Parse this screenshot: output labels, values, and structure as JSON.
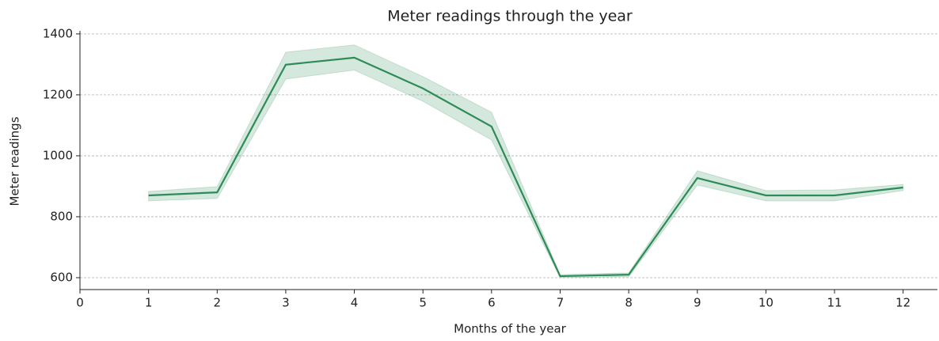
{
  "chart_data": {
    "type": "line",
    "title": "Meter readings through the year",
    "xlabel": "Months of the year",
    "ylabel": "Meter readings",
    "x": [
      1,
      2,
      3,
      4,
      5,
      6,
      7,
      8,
      9,
      10,
      11,
      12
    ],
    "series": [
      {
        "color": "#2e8b57",
        "values": [
          870,
          880,
          1299,
          1322,
          1221,
          1096,
          605,
          610,
          927,
          870,
          870,
          896
        ]
      }
    ],
    "band_lower": [
      852,
      860,
      1252,
      1281,
      1179,
      1052,
      600,
      603,
      904,
      852,
      852,
      886
    ],
    "band_upper": [
      883,
      899,
      1340,
      1364,
      1260,
      1143,
      610,
      616,
      951,
      886,
      888,
      906
    ],
    "band_color": "#2e8b57",
    "xlim": [
      0,
      12.5
    ],
    "ylim": [
      561,
      1410
    ],
    "xticks": [
      0,
      1,
      2,
      3,
      4,
      5,
      6,
      7,
      8,
      9,
      10,
      11,
      12
    ],
    "yticks": [
      600,
      800,
      1000,
      1200,
      1400
    ],
    "grid": "y"
  }
}
